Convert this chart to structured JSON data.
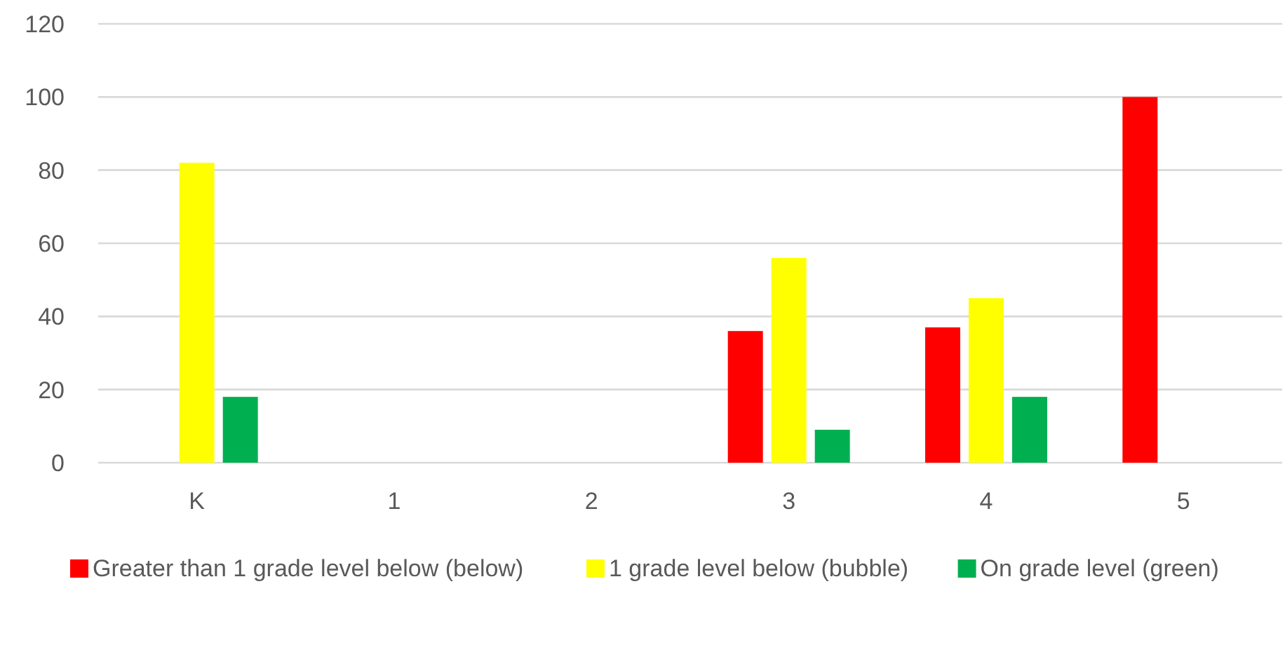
{
  "chart_data": {
    "type": "bar",
    "categories": [
      "K",
      "1",
      "2",
      "3",
      "4",
      "5"
    ],
    "series": [
      {
        "name": "Greater than 1 grade level below (below)",
        "color": "#ff0000",
        "values": [
          null,
          null,
          null,
          36,
          37,
          100
        ]
      },
      {
        "name": "1 grade level below (bubble)",
        "color": "#ffff00",
        "values": [
          82,
          null,
          null,
          56,
          45,
          null
        ]
      },
      {
        "name": "On grade level (green)",
        "color": "#00b050",
        "values": [
          18,
          null,
          null,
          9,
          18,
          null
        ]
      }
    ],
    "ylim": [
      0,
      120
    ],
    "yticks": [
      0,
      20,
      40,
      60,
      80,
      100,
      120
    ],
    "grid": "y",
    "legend": "bottom"
  }
}
